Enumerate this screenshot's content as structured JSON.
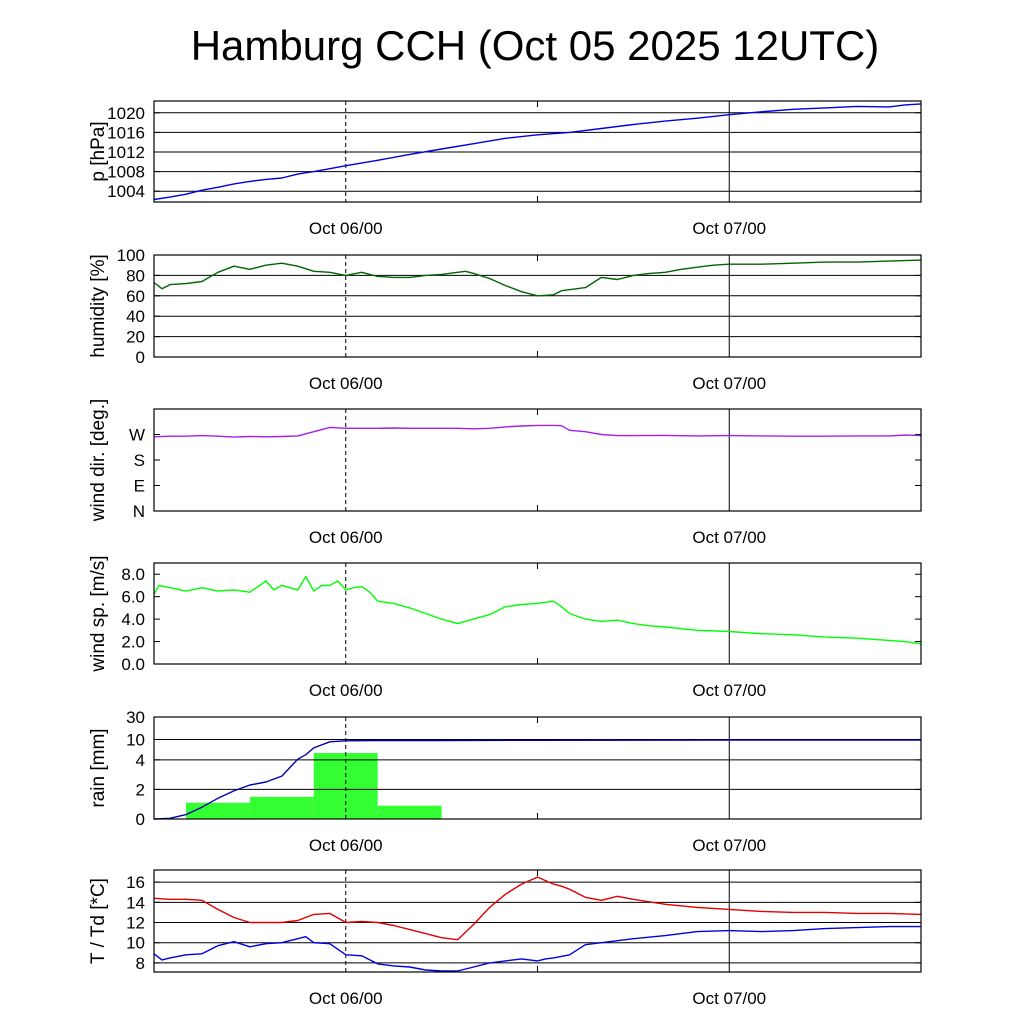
{
  "title": "Hamburg CCH (Oct 05 2025 12UTC)",
  "colors": {
    "pressure": "#0000e0",
    "humidity": "#006400",
    "wind_dir": "#a020f0",
    "wind_speed": "#00ff00",
    "rain_bar": "#33ff33",
    "rain_cum": "#0000b0",
    "temperature": "#e00000",
    "dewpoint": "#0000e0"
  },
  "chart_data": [
    {
      "id": "pressure",
      "type": "line",
      "ylabel": "p [hPa]",
      "ylim": [
        1001.8,
        1022.4
      ],
      "xlim": [
        -12,
        36
      ],
      "yticks": [
        1004,
        1008,
        1012,
        1016,
        1020
      ],
      "ytick_labels": [
        "1004",
        "1008",
        "1012",
        "1016",
        "1020"
      ],
      "hgrid": [
        1004,
        1008,
        1012,
        1016,
        1020
      ],
      "xtick_labels": [
        "Oct 06/00",
        "Oct 07/00"
      ],
      "series": [
        {
          "color_key": "pressure",
          "x": [
            -12,
            -11,
            -10,
            -9,
            -8,
            -7,
            -6,
            -5,
            -4,
            -3,
            -2,
            -1,
            0,
            2,
            4,
            6,
            8,
            10,
            12,
            14,
            16,
            18,
            20,
            22,
            24,
            26,
            28,
            30,
            32,
            34,
            35,
            36
          ],
          "y": [
            1002.3,
            1002.8,
            1003.4,
            1004.2,
            1004.8,
            1005.5,
            1006.0,
            1006.4,
            1006.7,
            1007.5,
            1008.0,
            1008.6,
            1009.2,
            1010.3,
            1011.5,
            1012.6,
            1013.7,
            1014.8,
            1015.5,
            1016.0,
            1016.8,
            1017.6,
            1018.3,
            1018.9,
            1019.6,
            1020.2,
            1020.7,
            1021.0,
            1021.3,
            1021.2,
            1021.6,
            1021.8
          ]
        }
      ]
    },
    {
      "id": "humidity",
      "type": "line",
      "ylabel": "humidity [%]",
      "ylim": [
        0,
        100
      ],
      "xlim": [
        -12,
        36
      ],
      "yticks": [
        0,
        20,
        40,
        60,
        80,
        100
      ],
      "ytick_labels": [
        "0",
        "20",
        "40",
        "60",
        "80",
        "100"
      ],
      "hgrid": [
        20,
        40,
        60,
        80
      ],
      "xtick_labels": [
        "Oct 06/00",
        "Oct 07/00"
      ],
      "series": [
        {
          "color_key": "humidity",
          "x": [
            -12,
            -11.5,
            -11,
            -10,
            -9,
            -8,
            -7,
            -6,
            -5,
            -4,
            -3,
            -2,
            -1,
            0,
            1,
            2,
            3,
            4,
            5,
            6,
            7,
            7.5,
            8,
            9,
            10,
            11,
            12,
            13,
            13.5,
            14,
            15,
            16,
            17,
            18,
            19,
            20,
            21,
            22,
            23,
            24,
            26,
            28,
            30,
            32,
            34,
            36
          ],
          "y": [
            73,
            67,
            71,
            72,
            74,
            83,
            89,
            86,
            90,
            92,
            89,
            84,
            83,
            80,
            83,
            79,
            78,
            78,
            80,
            81,
            83,
            84,
            82,
            77,
            70,
            64,
            60,
            61,
            65,
            66,
            68,
            78,
            76,
            80,
            82,
            83,
            86,
            88,
            90,
            91,
            91,
            92,
            93,
            93,
            94,
            95
          ]
        }
      ]
    },
    {
      "id": "wind_dir",
      "type": "line",
      "ylabel": "wind dir. [deg.]",
      "ylim": [
        0,
        360
      ],
      "xlim": [
        -12,
        36
      ],
      "yticks": [
        0,
        90,
        180,
        270
      ],
      "ytick_labels": [
        "N",
        "E",
        "S",
        "W"
      ],
      "hgrid": [],
      "xtick_labels": [
        "Oct 06/00",
        "Oct 07/00"
      ],
      "series": [
        {
          "color_key": "wind_dir",
          "x": [
            -12,
            -11,
            -10,
            -9,
            -8,
            -7,
            -6,
            -5,
            -4,
            -3,
            -2,
            -1,
            0,
            1,
            2,
            3,
            4,
            5,
            6,
            7,
            8,
            9,
            10,
            11,
            12,
            13,
            13.5,
            14,
            15,
            16,
            17,
            18,
            20,
            22,
            24,
            26,
            28,
            30,
            32,
            34,
            35,
            36
          ],
          "y": [
            262,
            264,
            264,
            266,
            264,
            261,
            263,
            262,
            263,
            265,
            280,
            295,
            292,
            292,
            292,
            293,
            292,
            292,
            292,
            292,
            290,
            292,
            297,
            300,
            302,
            302,
            301,
            285,
            280,
            270,
            266,
            266,
            267,
            265,
            266,
            265,
            264,
            264,
            265,
            265,
            268,
            266
          ]
        }
      ]
    },
    {
      "id": "wind_speed",
      "type": "line",
      "ylabel": "wind sp. [m/s]",
      "ylim": [
        0,
        9
      ],
      "xlim": [
        -12,
        36
      ],
      "yticks": [
        0,
        2,
        4,
        6,
        8
      ],
      "ytick_labels": [
        "0.0",
        "2.0",
        "4.0",
        "6.0",
        "8.0"
      ],
      "hgrid": [],
      "xtick_labels": [
        "Oct 06/00",
        "Oct 07/00"
      ],
      "series": [
        {
          "color_key": "wind_speed",
          "x": [
            -12,
            -11.7,
            -11,
            -10,
            -9,
            -8,
            -7,
            -6,
            -5,
            -4.5,
            -4,
            -3.5,
            -3,
            -2.5,
            -2,
            -1.5,
            -1,
            -0.5,
            0,
            0.5,
            1,
            1.5,
            2,
            3,
            4,
            5,
            6,
            7,
            8,
            9,
            10,
            11,
            12,
            13,
            13.5,
            14,
            15,
            16,
            17,
            18,
            19,
            20,
            22,
            24,
            26,
            28,
            30,
            32,
            34,
            35,
            36
          ],
          "y": [
            6.2,
            7.0,
            6.8,
            6.5,
            6.8,
            6.5,
            6.6,
            6.4,
            7.4,
            6.6,
            7.0,
            6.8,
            6.6,
            7.8,
            6.5,
            7.0,
            7.0,
            7.4,
            6.6,
            6.8,
            6.9,
            6.4,
            5.6,
            5.4,
            5.0,
            4.5,
            4.0,
            3.6,
            4.0,
            4.4,
            5.1,
            5.3,
            5.4,
            5.6,
            5.1,
            4.5,
            4.0,
            3.8,
            3.9,
            3.6,
            3.4,
            3.3,
            3.0,
            2.9,
            2.7,
            2.6,
            2.4,
            2.3,
            2.1,
            2.0,
            1.8
          ]
        }
      ]
    },
    {
      "id": "rain",
      "type": "bar",
      "ylabel": "rain [mm]",
      "ylim": [
        0,
        30
      ],
      "xlim": [
        -12,
        36
      ],
      "yticks": [
        0,
        2,
        4,
        10,
        30
      ],
      "ytick_labels": [
        "0",
        "2",
        "4",
        "10",
        "30"
      ],
      "hgrid": [
        2,
        4,
        10
      ],
      "xtick_labels": [
        "Oct 06/00",
        "Oct 07/00"
      ],
      "bars": {
        "color_key": "rain_bar",
        "start": [
          -10,
          -6,
          -2,
          2
        ],
        "end": [
          -6,
          -2,
          2,
          6
        ],
        "values": [
          1.1,
          1.5,
          6.0,
          0.9
        ]
      },
      "series": [
        {
          "color_key": "rain_cum",
          "x": [
            -12,
            -11,
            -10,
            -9,
            -8,
            -7,
            -6,
            -5,
            -4,
            -3,
            -2.5,
            -2,
            -1,
            0,
            2,
            6,
            12,
            24,
            36
          ],
          "y": [
            0,
            0.05,
            0.3,
            0.8,
            1.4,
            1.9,
            2.3,
            2.5,
            2.9,
            4.2,
            5.5,
            7.5,
            9.3,
            9.6,
            9.7,
            9.7,
            9.75,
            9.8,
            9.8
          ]
        }
      ]
    },
    {
      "id": "temperature",
      "type": "line",
      "ylabel": "T / Td [*C]",
      "ylim": [
        7.1,
        17.2
      ],
      "xlim": [
        -12,
        36
      ],
      "yticks": [
        8,
        10,
        12,
        14,
        16
      ],
      "ytick_labels": [
        "8",
        "10",
        "12",
        "14",
        "16"
      ],
      "hgrid": [
        8,
        10,
        12,
        14,
        16
      ],
      "xtick_labels": [
        "Oct 06/00",
        "Oct 07/00"
      ],
      "series": [
        {
          "color_key": "temperature",
          "x": [
            -12,
            -11,
            -10,
            -9,
            -8,
            -7,
            -6,
            -5,
            -4,
            -3,
            -2,
            -1,
            0,
            1,
            2,
            3,
            4,
            5,
            6,
            7,
            8,
            9,
            10,
            11,
            12,
            13,
            13.5,
            14,
            15,
            16,
            17,
            18,
            20,
            22,
            24,
            26,
            28,
            30,
            32,
            34,
            36
          ],
          "y": [
            14.4,
            14.3,
            14.3,
            14.2,
            13.3,
            12.5,
            12.0,
            12.0,
            12.0,
            12.2,
            12.8,
            12.9,
            12.0,
            12.1,
            12.0,
            11.7,
            11.3,
            10.9,
            10.5,
            10.3,
            11.8,
            13.5,
            14.8,
            15.8,
            16.5,
            15.8,
            15.6,
            15.3,
            14.5,
            14.2,
            14.6,
            14.3,
            13.8,
            13.5,
            13.3,
            13.1,
            13.0,
            13.0,
            12.9,
            12.9,
            12.8
          ]
        },
        {
          "color_key": "dewpoint",
          "x": [
            -12,
            -11.5,
            -11,
            -10,
            -9,
            -8,
            -7,
            -6,
            -5,
            -4,
            -3,
            -2.5,
            -2,
            -1,
            0,
            1,
            2,
            3,
            4,
            5,
            6,
            7,
            8,
            9,
            10,
            11,
            12,
            12.5,
            13,
            14,
            15,
            16,
            18,
            20,
            22,
            24,
            26,
            28,
            30,
            32,
            34,
            36
          ],
          "y": [
            8.9,
            8.3,
            8.5,
            8.8,
            8.9,
            9.7,
            10.1,
            9.6,
            9.9,
            10.0,
            10.4,
            10.6,
            10.0,
            9.9,
            8.8,
            8.7,
            7.9,
            7.7,
            7.6,
            7.3,
            7.2,
            7.2,
            7.6,
            8.0,
            8.2,
            8.4,
            8.2,
            8.4,
            8.5,
            8.8,
            9.8,
            10.0,
            10.4,
            10.7,
            11.1,
            11.2,
            11.1,
            11.2,
            11.4,
            11.5,
            11.6,
            11.6
          ]
        }
      ]
    }
  ]
}
